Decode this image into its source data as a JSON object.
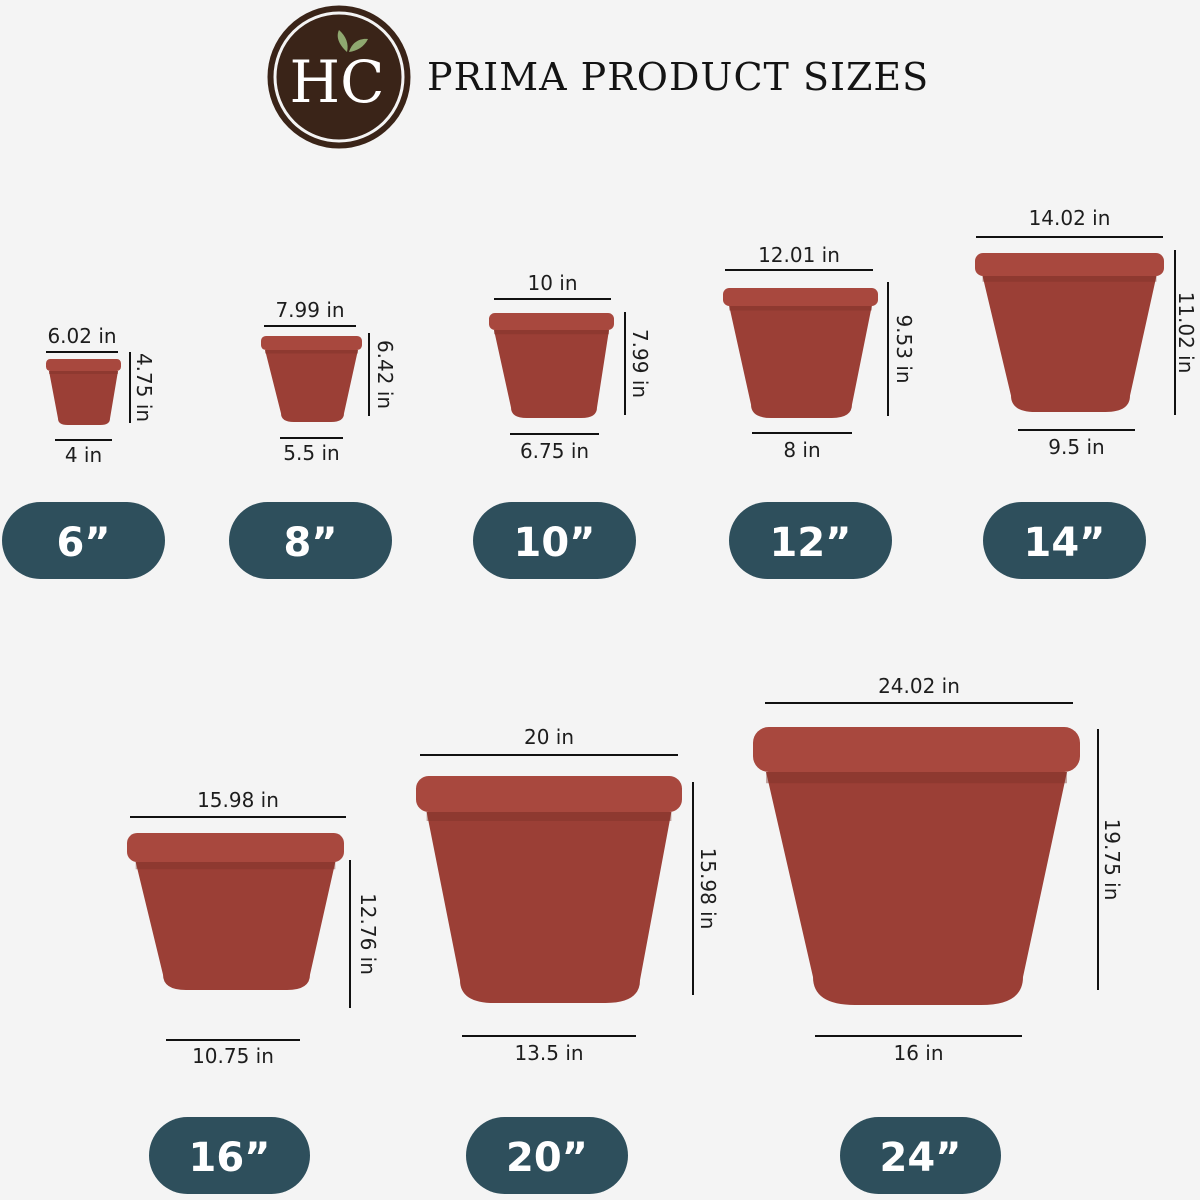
{
  "header": {
    "logo_text": "HC",
    "title": "PRIMA PRODUCT SIZES"
  },
  "colors": {
    "background": "#f4f4f4",
    "pot": "#9b3f36",
    "pot_rim": "#a8483e",
    "size_badge": "#2e4f5c",
    "logo": "#3a2418",
    "leaf": "#8fa870"
  },
  "products": [
    {
      "size": "6”",
      "top_diameter": "6.02 in",
      "height": "4.75 in",
      "bottom_diameter": "4 in"
    },
    {
      "size": "8”",
      "top_diameter": "7.99 in",
      "height": "6.42 in",
      "bottom_diameter": "5.5 in"
    },
    {
      "size": "10”",
      "top_diameter": "10 in",
      "height": "7.99 in",
      "bottom_diameter": "6.75 in"
    },
    {
      "size": "12”",
      "top_diameter": "12.01 in",
      "height": "9.53 in",
      "bottom_diameter": "8 in"
    },
    {
      "size": "14”",
      "top_diameter": "14.02 in",
      "height": "11.02 in",
      "bottom_diameter": "9.5 in"
    },
    {
      "size": "16”",
      "top_diameter": "15.98 in",
      "height": "12.76 in",
      "bottom_diameter": "10.75 in"
    },
    {
      "size": "20”",
      "top_diameter": "20 in",
      "height": "15.98 in",
      "bottom_diameter": "13.5 in"
    },
    {
      "size": "24”",
      "top_diameter": "24.02 in",
      "height": "19.75 in",
      "bottom_diameter": "16 in"
    }
  ]
}
